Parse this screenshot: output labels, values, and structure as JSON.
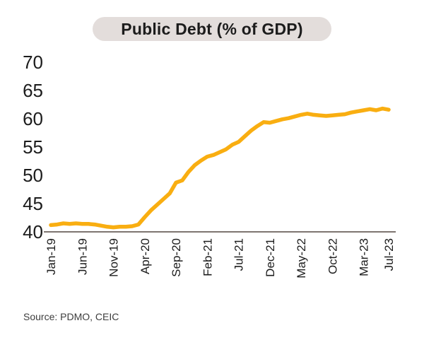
{
  "title": "Public Debt (% of GDP)",
  "source": "Source: PDMO, CEIC",
  "colors": {
    "line": "#F9AE11",
    "axis": "#7E7570",
    "title_bg": "#E3DDDB",
    "text": "#1C1C1C"
  },
  "chart_data": {
    "type": "line",
    "title": "Public Debt (% of GDP)",
    "xlabel": "",
    "ylabel": "",
    "ylim": [
      40,
      70
    ],
    "grid": false,
    "legend": false,
    "y_ticks": [
      40,
      45,
      50,
      55,
      60,
      65,
      70
    ],
    "x_tick_labels": [
      "Jan-19",
      "Jun-19",
      "Nov-19",
      "Apr-20",
      "Sep-20",
      "Feb-21",
      "Jul-21",
      "Dec-21",
      "May-22",
      "Oct-22",
      "Mar-23",
      "Jul-23"
    ],
    "x": [
      "Jan-19",
      "Feb-19",
      "Mar-19",
      "Apr-19",
      "May-19",
      "Jun-19",
      "Jul-19",
      "Aug-19",
      "Sep-19",
      "Oct-19",
      "Nov-19",
      "Dec-19",
      "Jan-20",
      "Feb-20",
      "Mar-20",
      "Apr-20",
      "May-20",
      "Jun-20",
      "Jul-20",
      "Aug-20",
      "Sep-20",
      "Oct-20",
      "Nov-20",
      "Dec-20",
      "Jan-21",
      "Feb-21",
      "Mar-21",
      "Apr-21",
      "May-21",
      "Jun-21",
      "Jul-21",
      "Aug-21",
      "Sep-21",
      "Oct-21",
      "Nov-21",
      "Dec-21",
      "Jan-22",
      "Feb-22",
      "Mar-22",
      "Apr-22",
      "May-22",
      "Jun-22",
      "Jul-22",
      "Aug-22",
      "Sep-22",
      "Oct-22",
      "Nov-22",
      "Dec-22",
      "Jan-23",
      "Feb-23",
      "Mar-23",
      "Apr-23",
      "May-23",
      "Jun-23",
      "Jul-23"
    ],
    "values": [
      41.2,
      41.3,
      41.5,
      41.4,
      41.5,
      41.4,
      41.4,
      41.3,
      41.1,
      40.9,
      40.8,
      40.9,
      40.9,
      41.0,
      41.3,
      42.6,
      43.8,
      44.8,
      45.8,
      46.8,
      48.7,
      49.1,
      50.6,
      51.8,
      52.6,
      53.3,
      53.6,
      54.1,
      54.6,
      55.4,
      55.9,
      56.9,
      57.9,
      58.7,
      59.4,
      59.3,
      59.6,
      59.9,
      60.1,
      60.4,
      60.7,
      60.9,
      60.7,
      60.6,
      60.5,
      60.6,
      60.7,
      60.8,
      61.1,
      61.3,
      61.5,
      61.7,
      61.5,
      61.8,
      61.6
    ]
  }
}
